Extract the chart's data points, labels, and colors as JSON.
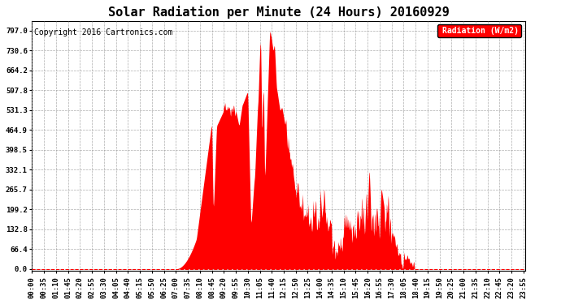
{
  "title": "Solar Radiation per Minute (24 Hours) 20160929",
  "copyright_text": "Copyright 2016 Cartronics.com",
  "legend_label": "Radiation (W/m2)",
  "ylabel_ticks": [
    0.0,
    66.4,
    132.8,
    199.2,
    265.7,
    332.1,
    398.5,
    464.9,
    531.3,
    597.8,
    664.2,
    730.6,
    797.0
  ],
  "fill_color": "#FF0000",
  "line_color": "#FF0000",
  "background_color": "#FFFFFF",
  "grid_color": "#999999",
  "legend_bg": "#FF0000",
  "legend_text_color": "#FFFFFF",
  "title_fontsize": 11,
  "copyright_fontsize": 7,
  "tick_fontsize": 6.5,
  "dpi": 100,
  "figsize": [
    6.9,
    3.75
  ]
}
